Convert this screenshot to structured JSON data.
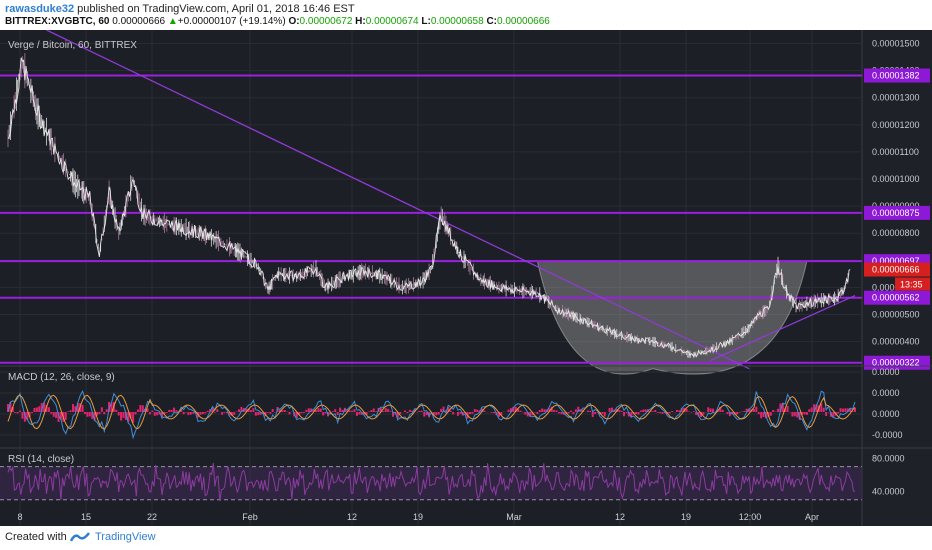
{
  "header": {
    "user": "rawasduke32",
    "published": "published on TradingView.com, April 01, 2018 16:46 EST",
    "symbol": "BITTREX:XVGBTC, 60",
    "last": "0.00000666",
    "change_arrow": "▲",
    "change": "+0.00000107 (+19.14%)",
    "o_label": "O:",
    "o_value": "0.00000672",
    "h_label": "H:",
    "h_value": "0.00000674",
    "l_label": "L:",
    "l_value": "0.00000658",
    "c_label": "C:",
    "c_value": "0.00000666"
  },
  "footer": {
    "created": "Created with",
    "brand": "TradingView",
    "logo_icon": "tradingview-logo-icon"
  },
  "colors": {
    "bg": "#1d1f26",
    "axis_bg": "#1f2129",
    "level_line": "#9b1fe0",
    "trend_line": "#8f3ad6",
    "label_bg": "#8d18d6",
    "grid": "#2a2c35",
    "macd_line": "#3d8fd9",
    "signal_line": "#e89a3c",
    "hist": "#e0246e",
    "rsi": "#8b3b9f",
    "rsi_band": "#3d2a52"
  },
  "chart_data": [
    {
      "type": "line",
      "title": "Verge / Bitcoin, 60, BITTREX",
      "x_ticks": [
        "8",
        "15",
        "22",
        "Feb",
        "12",
        "19",
        "Mar",
        "12",
        "19",
        "12:00",
        "Apr"
      ],
      "y_ticks": [
        "0.00001500",
        "0.00001400",
        "0.00001300",
        "0.00001200",
        "0.00001100",
        "0.00001000",
        "0.00000900",
        "0.00000800",
        "0.00000700",
        "0.00000600",
        "0.00000500",
        "0.00000400",
        "0.00000300"
      ],
      "ylim": [
        3.1e-06,
        1.55e-05
      ],
      "levels": [
        {
          "value": 1.382e-05,
          "label": "0.00001382"
        },
        {
          "value": 8.75e-06,
          "label": "0.00000875"
        },
        {
          "value": 6.97e-06,
          "label": "0.00000697"
        },
        {
          "value": 5.62e-06,
          "label": "0.00000562"
        },
        {
          "value": 3.22e-06,
          "label": "0.00000322"
        }
      ],
      "price_label": "0.00000666",
      "countdown_label": "13:35",
      "price_series": [
        [
          0,
          1.15e-05
        ],
        [
          1.5,
          1.43e-05
        ],
        [
          3,
          1.25e-05
        ],
        [
          5,
          1.1e-05
        ],
        [
          7,
          9.8e-06
        ],
        [
          8.5,
          9.3e-06
        ],
        [
          9.5,
          7.2e-06
        ],
        [
          10.5,
          9.5e-06
        ],
        [
          11.5,
          8e-06
        ],
        [
          13,
          1e-05
        ],
        [
          14,
          8.7e-06
        ],
        [
          16,
          8.4e-06
        ],
        [
          18,
          8.2e-06
        ],
        [
          20,
          8e-06
        ],
        [
          22,
          7.7e-06
        ],
        [
          24,
          7.3e-06
        ],
        [
          26,
          6.8e-06
        ],
        [
          27,
          5.9e-06
        ],
        [
          28,
          6.5e-06
        ],
        [
          30,
          6.4e-06
        ],
        [
          32,
          6.7e-06
        ],
        [
          33,
          6e-06
        ],
        [
          35,
          6.4e-06
        ],
        [
          37,
          6.6e-06
        ],
        [
          39,
          6.4e-06
        ],
        [
          41,
          6e-06
        ],
        [
          43,
          6.2e-06
        ],
        [
          44,
          6.7e-06
        ],
        [
          45,
          8.7e-06
        ],
        [
          46,
          7.9e-06
        ],
        [
          47,
          7.2e-06
        ],
        [
          49,
          6.3e-06
        ],
        [
          51,
          6e-06
        ],
        [
          53,
          5.9e-06
        ],
        [
          55,
          5.8e-06
        ],
        [
          57,
          5.2e-06
        ],
        [
          59,
          4.9e-06
        ],
        [
          61,
          4.6e-06
        ],
        [
          63,
          4.3e-06
        ],
        [
          65,
          4.1e-06
        ],
        [
          67,
          4e-06
        ],
        [
          69,
          3.8e-06
        ],
        [
          71,
          3.5e-06
        ],
        [
          73,
          3.7e-06
        ],
        [
          75,
          4e-06
        ],
        [
          77,
          4.5e-06
        ],
        [
          78,
          5e-06
        ],
        [
          79,
          5.2e-06
        ],
        [
          80,
          6.8e-06
        ],
        [
          81,
          5.7e-06
        ],
        [
          82,
          5.3e-06
        ],
        [
          84,
          5.5e-06
        ],
        [
          86,
          5.6e-06
        ],
        [
          87,
          6e-06
        ],
        [
          87.5,
          6.66e-06
        ]
      ],
      "trendlines": [
        {
          "from": [
            4,
            1.55e-05
          ],
          "to": [
            77,
            3e-06
          ]
        },
        {
          "from": [
            73,
            3.3e-06
          ],
          "to": [
            88,
            5.7e-06
          ]
        }
      ],
      "cup": {
        "label": "",
        "left": [
          55,
          6.97e-06
        ],
        "bottom": [
          67,
          3e-06
        ],
        "right": [
          83,
          6.97e-06
        ]
      }
    },
    {
      "type": "line",
      "title": "MACD (12, 26, close, 9)",
      "y_ticks": [
        "0.0000",
        "0.0000",
        "0.0000",
        "-0.0000"
      ],
      "series": [
        {
          "values": []
        }
      ]
    },
    {
      "type": "line",
      "title": "RSI (14, close)",
      "y_ticks": [
        "80.0000",
        "40.0000"
      ],
      "bands": [
        70,
        30
      ]
    }
  ]
}
